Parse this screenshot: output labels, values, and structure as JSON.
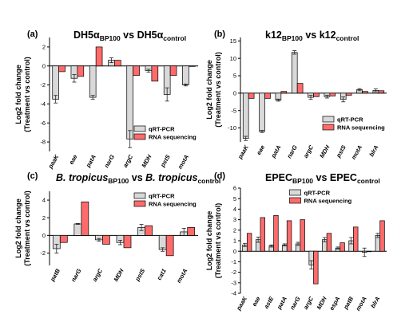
{
  "colors": {
    "qpcr": "#d9d9d9",
    "rna": "#ff6b6b",
    "stroke": "#000000",
    "error": "#222222"
  },
  "chart_data": [
    {
      "panel": "(a)",
      "type": "bar",
      "title_main": "DH5α",
      "title_sub1": "BP100",
      "title_vs": " vs DH5α",
      "title_sub2": "control",
      "title_italic": false,
      "ylabel": [
        "Log2 fold change",
        "(Treatment vs control)"
      ],
      "ylim": [
        -9,
        3
      ],
      "yticks": [
        -8,
        -6,
        -4,
        -2,
        0,
        2
      ],
      "categories": [
        "paaK",
        "eae",
        "patA",
        "narG",
        "argC",
        "MDH",
        "pstS",
        "motA"
      ],
      "series": [
        {
          "name": "qRT-PCR",
          "values": [
            -3.5,
            -1.3,
            -3.3,
            0.6,
            -7.7,
            -0.5,
            -3.0,
            -2.0
          ],
          "errors": [
            0.4,
            0.4,
            0.2,
            0.25,
            0.9,
            0.15,
            0.7,
            0.1
          ]
        },
        {
          "name": "RNA sequencing",
          "values": [
            -0.6,
            -1.1,
            2.0,
            0.6,
            -1.0,
            -1.6,
            -1.0,
            0.0
          ],
          "errors": [
            0,
            0,
            0,
            0,
            0,
            0,
            0,
            0
          ]
        }
      ],
      "legend": "bottom-right",
      "legend_labels": [
        "qRT-PCR",
        "RNA sequencing"
      ]
    },
    {
      "panel": "(b)",
      "type": "bar",
      "title_main": "k12",
      "title_sub1": "BP100",
      "title_vs": " vs k12",
      "title_sub2": "control",
      "title_italic": false,
      "ylabel": [
        "Log2 fold change",
        "(Treatment vs control)"
      ],
      "ylim": [
        -14,
        16
      ],
      "yticks": [
        -10,
        -5,
        0,
        5,
        10,
        15
      ],
      "categories": [
        "paaK",
        "eae",
        "patA",
        "narG",
        "argC",
        "MDH",
        "pstS",
        "motA",
        "blrA"
      ],
      "series": [
        {
          "name": "qRT-PCR",
          "values": [
            -13.0,
            -11.0,
            -2.0,
            11.7,
            -1.2,
            -1.0,
            -1.8,
            1.0,
            0.8
          ],
          "errors": [
            0.6,
            0.3,
            0.3,
            0.5,
            0.6,
            0.4,
            0.7,
            0.3,
            0.4
          ]
        },
        {
          "name": "RNA sequencing",
          "values": [
            -1.5,
            -1.5,
            0.5,
            2.8,
            -1.0,
            -0.8,
            -0.6,
            0.5,
            0.7
          ],
          "errors": [
            0,
            0,
            0,
            0,
            0,
            0,
            0,
            0,
            0
          ]
        }
      ],
      "legend": "bottom-right",
      "legend_labels": [
        "qRT-PCR",
        "RNA sequencing"
      ]
    },
    {
      "panel": "(c)",
      "type": "bar",
      "title_main": "B. tropicus",
      "title_sub1": "BP100",
      "title_vs": " vs B. tropicus",
      "title_sub2": "control",
      "title_italic": true,
      "ylabel": [
        "Log2 fold change",
        "(Treatment vs control)"
      ],
      "ylim": [
        -3.4,
        5
      ],
      "yticks": [
        -2,
        0,
        2,
        4
      ],
      "categories": [
        "patB",
        "narG",
        "argC",
        "MDH",
        "pstS",
        "cat1",
        "motA"
      ],
      "series": [
        {
          "name": "qRT-PCR",
          "values": [
            -1.5,
            1.3,
            -0.5,
            -0.8,
            0.9,
            -1.6,
            0.4
          ],
          "errors": [
            0.5,
            0.05,
            0.15,
            0.25,
            0.35,
            0.2,
            0.4
          ]
        },
        {
          "name": "RNA sequencing",
          "values": [
            -0.8,
            3.8,
            -1.0,
            -1.4,
            1.1,
            -2.3,
            0.9
          ],
          "errors": [
            0,
            0,
            0,
            0,
            0,
            0,
            0
          ]
        }
      ],
      "legend": "top-right",
      "legend_labels": [
        "qRT-PCR",
        "RNA sequencing"
      ]
    },
    {
      "panel": "(d)",
      "type": "bar",
      "title_main": "EPEC",
      "title_sub1": "BP100",
      "title_vs": " vs EPEC",
      "title_sub2": "control",
      "title_italic": false,
      "ylabel": [
        "Log2 fold change",
        "(Treatment vs control)"
      ],
      "ylim": [
        -4,
        6
      ],
      "yticks": [
        -4,
        -3,
        -2,
        -1,
        0,
        1,
        2,
        3,
        4,
        5,
        6
      ],
      "categories": [
        "paaK",
        "eae",
        "astE",
        "patA",
        "narG",
        "argC",
        "MDH",
        "espA",
        "patB",
        "motA",
        "blrA"
      ],
      "series": [
        {
          "name": "qRT-PCR",
          "values": [
            0.6,
            1.1,
            0.5,
            0.6,
            0.7,
            -1.3,
            1.1,
            0.3,
            1.0,
            -0.1,
            1.5
          ],
          "errors": [
            0.15,
            0.25,
            0.1,
            0.1,
            0.15,
            0.4,
            0.2,
            0.1,
            0.3,
            0.4,
            0.2
          ]
        },
        {
          "name": "RNA sequencing",
          "values": [
            1.7,
            3.2,
            3.4,
            2.9,
            3.0,
            -3.1,
            1.7,
            0.8,
            2.3,
            0.0,
            2.9
          ],
          "errors": [
            0,
            0,
            0,
            0,
            0,
            0,
            0,
            0,
            0,
            0,
            0
          ]
        }
      ],
      "legend": "top-center",
      "legend_labels": [
        "qRT-PCR",
        "RNA sequencing"
      ]
    }
  ]
}
